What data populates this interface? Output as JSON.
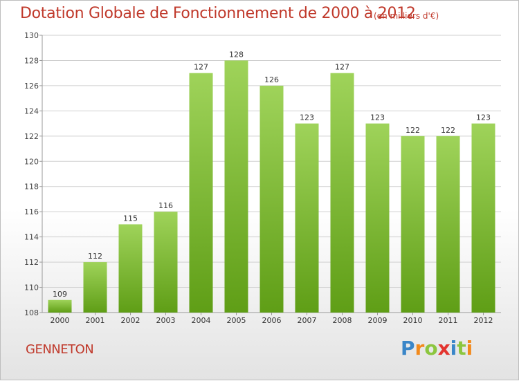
{
  "header": {
    "title": "Dotation Globale de Fonctionnement de 2000 à 2012",
    "subtitle": "(en milliers d'€)"
  },
  "footer": {
    "commune": "GENNETON",
    "logo_text": "Proxiti",
    "logo_letters": [
      {
        "ch": "P",
        "color": "#3a86c8"
      },
      {
        "ch": "r",
        "color": "#f28a1c"
      },
      {
        "ch": "o",
        "color": "#8cc63f"
      },
      {
        "ch": "x",
        "color": "#e3342f"
      },
      {
        "ch": "i",
        "color": "#3a86c8"
      },
      {
        "ch": "t",
        "color": "#8cc63f"
      },
      {
        "ch": "i",
        "color": "#f28a1c"
      }
    ]
  },
  "colors": {
    "title": "#c0392b",
    "bar_light": "#9fd35a",
    "bar_dark": "#5f9e16",
    "grid": "#cfcfcf"
  },
  "chart_data": {
    "type": "bar",
    "title": "Dotation Globale de Fonctionnement de 2000 à 2012",
    "subtitle": "(en milliers d'€)",
    "categories": [
      "2000",
      "2001",
      "2002",
      "2003",
      "2004",
      "2005",
      "2006",
      "2007",
      "2008",
      "2009",
      "2010",
      "2011",
      "2012"
    ],
    "values": [
      109,
      112,
      115,
      116,
      127,
      128,
      126,
      123,
      127,
      123,
      122,
      122,
      123
    ],
    "ylim": [
      108,
      130
    ],
    "yticks": [
      108,
      110,
      112,
      114,
      116,
      118,
      120,
      122,
      124,
      126,
      128,
      130
    ],
    "grid": true,
    "legend": "none",
    "data_labels": true
  }
}
